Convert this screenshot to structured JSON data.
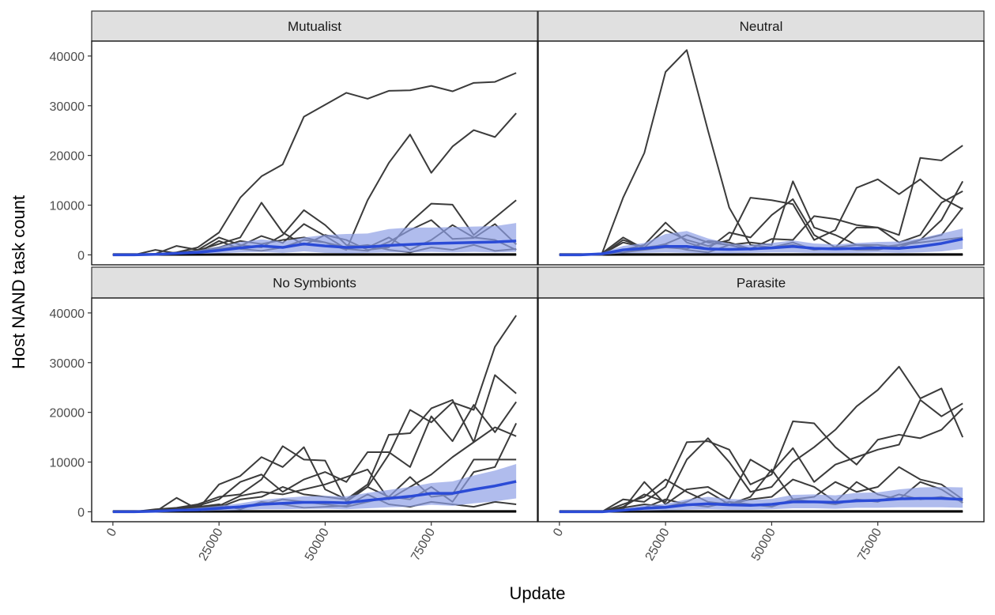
{
  "chart_data": {
    "type": "line",
    "xlabel": "Update",
    "ylabel": "Host NAND task count",
    "xlim": [
      -5000,
      100000
    ],
    "ylim": [
      -2000,
      43000
    ],
    "x_ticks": [
      0,
      25000,
      50000,
      75000
    ],
    "y_ticks": [
      0,
      10000,
      20000,
      30000,
      40000
    ],
    "x_tick_rotation_deg": -60,
    "colors": {
      "run_line": "#3b3b3b",
      "mean_line": "#2b4bd6",
      "ribbon": "#8e9fe6",
      "strip_fill": "#e0e0e0",
      "strip_border": "#333333"
    },
    "x": [
      0,
      5000,
      10000,
      15000,
      20000,
      25000,
      30000,
      35000,
      40000,
      45000,
      50000,
      55000,
      60000,
      65000,
      70000,
      75000,
      80000,
      85000,
      90000,
      95000
    ],
    "facets": [
      {
        "label": "Mutualist",
        "runs": [
          [
            0,
            0,
            0,
            500,
            1500,
            4500,
            11500,
            15800,
            18200,
            27800,
            30200,
            32600,
            31400,
            33000,
            33100,
            34000,
            32900,
            34600,
            34800,
            36600
          ],
          [
            0,
            0,
            0,
            300,
            800,
            1500,
            2800,
            2200,
            3000,
            3500,
            2500,
            1000,
            11000,
            18500,
            24200,
            16500,
            21800,
            25100,
            23700,
            28500
          ],
          [
            0,
            0,
            0,
            400,
            900,
            2200,
            3500,
            10500,
            4500,
            2000,
            4000,
            3000,
            1000,
            1500,
            6500,
            10300,
            10100,
            4000,
            7500,
            11000
          ],
          [
            0,
            0,
            200,
            1800,
            1000,
            3500,
            2000,
            1500,
            4000,
            9000,
            6000,
            2000,
            1500,
            3500,
            1000,
            3000,
            6000,
            3500,
            3000,
            1000
          ],
          [
            0,
            0,
            0,
            200,
            600,
            1200,
            1800,
            3800,
            2400,
            6200,
            3800,
            1200,
            800,
            2600,
            5000,
            7000,
            3200,
            3400,
            6200,
            2100
          ],
          [
            0,
            0,
            1000,
            300,
            500,
            2800,
            1200,
            800,
            1500,
            3000,
            2500,
            1500,
            2000,
            1000,
            500,
            1500,
            1000,
            2000,
            800,
            1200
          ]
        ],
        "mean": [
          0,
          0,
          100,
          300,
          500,
          900,
          1400,
          1800,
          1500,
          2200,
          1800,
          1500,
          1600,
          1900,
          2100,
          2300,
          2400,
          2500,
          2600,
          2800
        ],
        "ribbon_low": [
          0,
          0,
          0,
          100,
          200,
          300,
          500,
          600,
          400,
          700,
          400,
          300,
          400,
          500,
          500,
          600,
          500,
          600,
          500,
          600
        ],
        "ribbon_high": [
          0,
          0,
          200,
          500,
          900,
          1700,
          2600,
          3100,
          2700,
          3500,
          4000,
          4200,
          4300,
          5200,
          5500,
          5500,
          5600,
          5700,
          5800,
          6400
        ]
      },
      {
        "label": "Neutral",
        "runs": [
          [
            0,
            0,
            200,
            11500,
            20500,
            36800,
            41200,
            25000,
            9500,
            2000,
            1500,
            2000,
            1000,
            1500,
            2000,
            1500,
            2000,
            2500,
            3000,
            3500
          ],
          [
            0,
            0,
            100,
            2500,
            1500,
            5000,
            3000,
            1800,
            3000,
            11500,
            11000,
            10200,
            3000,
            5000,
            13500,
            15200,
            12200,
            15200,
            11500,
            9200
          ],
          [
            0,
            0,
            0,
            1000,
            2000,
            6500,
            2500,
            1200,
            4500,
            3500,
            8000,
            11200,
            4000,
            1500,
            5500,
            5500,
            4000,
            19500,
            19000,
            22000
          ],
          [
            0,
            0,
            300,
            3500,
            1200,
            2200,
            4000,
            2500,
            2000,
            2500,
            2000,
            14800,
            5500,
            4000,
            2000,
            2000,
            1500,
            3000,
            7000,
            14800
          ],
          [
            0,
            0,
            100,
            500,
            1000,
            1500,
            1200,
            2800,
            2500,
            1200,
            3200,
            3000,
            7800,
            7200,
            6000,
            5500,
            2500,
            4000,
            10500,
            12800
          ],
          [
            0,
            0,
            0,
            3000,
            1500,
            2000,
            1000,
            500,
            2000,
            1000,
            1500,
            2500,
            1000,
            1500,
            1000,
            1000,
            2000,
            3000,
            4000,
            9500
          ]
        ],
        "mean": [
          0,
          0,
          200,
          1000,
          1300,
          1700,
          1700,
          1200,
          1100,
          1200,
          1400,
          1700,
          1300,
          1200,
          1300,
          1400,
          1300,
          1700,
          2300,
          3200
        ],
        "ribbon_low": [
          0,
          0,
          0,
          300,
          400,
          500,
          400,
          300,
          300,
          400,
          500,
          500,
          400,
          400,
          400,
          500,
          400,
          500,
          700,
          1200
        ],
        "ribbon_high": [
          0,
          0,
          400,
          1800,
          2400,
          4200,
          4800,
          3300,
          2300,
          2000,
          2400,
          2900,
          2300,
          2100,
          2400,
          2600,
          2700,
          3300,
          4300,
          5300
        ]
      },
      {
        "label": "No Symbionts",
        "runs": [
          [
            0,
            0,
            500,
            800,
            1500,
            3000,
            3500,
            6500,
            13200,
            10500,
            10300,
            2000,
            5000,
            11500,
            20500,
            18000,
            22000,
            20500,
            33200,
            39500
          ],
          [
            0,
            0,
            0,
            2800,
            500,
            5500,
            7200,
            11000,
            9000,
            13000,
            4500,
            2500,
            5500,
            15500,
            15800,
            20800,
            22500,
            14000,
            27500,
            23800
          ],
          [
            0,
            0,
            200,
            600,
            1200,
            2500,
            6000,
            7500,
            4000,
            6500,
            8000,
            6000,
            12000,
            12000,
            9000,
            19200,
            14200,
            21500,
            16000,
            22100
          ],
          [
            0,
            0,
            0,
            400,
            800,
            1200,
            3200,
            4000,
            3500,
            4500,
            5500,
            7000,
            8500,
            2500,
            5000,
            7500,
            11000,
            14000,
            17000,
            15200
          ],
          [
            0,
            0,
            100,
            300,
            600,
            900,
            2500,
            3000,
            5000,
            3500,
            3000,
            2500,
            5000,
            3000,
            7000,
            3000,
            3500,
            10500,
            10500,
            10500
          ],
          [
            0,
            0,
            0,
            200,
            300,
            500,
            1000,
            1500,
            2500,
            2000,
            1500,
            1000,
            2000,
            3000,
            2500,
            5000,
            2000,
            8000,
            9000,
            17800
          ],
          [
            0,
            0,
            0,
            500,
            1000,
            1500,
            500,
            2000,
            1500,
            800,
            1000,
            1200,
            3500,
            1500,
            1000,
            2000,
            1500,
            1000,
            2000,
            1500
          ]
        ],
        "mean": [
          0,
          0,
          100,
          300,
          400,
          700,
          1000,
          1500,
          1700,
          1900,
          1900,
          1800,
          2300,
          2700,
          3100,
          3700,
          3700,
          4500,
          5200,
          6100
        ],
        "ribbon_low": [
          0,
          0,
          0,
          100,
          100,
          200,
          300,
          500,
          500,
          600,
          600,
          500,
          700,
          900,
          1000,
          1400,
          1200,
          1700,
          2100,
          2700
        ],
        "ribbon_high": [
          0,
          0,
          200,
          500,
          800,
          1200,
          1700,
          2400,
          2800,
          3100,
          3200,
          3100,
          3800,
          4400,
          5000,
          5800,
          6100,
          7300,
          8300,
          9600
        ]
      },
      {
        "label": "Parasite",
        "runs": [
          [
            0,
            0,
            0,
            1000,
            3500,
            2000,
            10500,
            14800,
            10000,
            4000,
            5000,
            10000,
            13000,
            16500,
            21200,
            24500,
            29200,
            22800,
            24800,
            15000
          ],
          [
            0,
            0,
            0,
            2500,
            2000,
            5000,
            14000,
            14200,
            12500,
            5500,
            7500,
            18200,
            17800,
            13000,
            9500,
            14500,
            15500,
            14800,
            16500,
            20800
          ],
          [
            0,
            0,
            0,
            500,
            6000,
            1500,
            4500,
            5000,
            2500,
            10500,
            8000,
            12800,
            6000,
            9500,
            11000,
            12500,
            13500,
            22500,
            19200,
            21800
          ],
          [
            0,
            0,
            0,
            1500,
            3000,
            6500,
            4000,
            2000,
            1500,
            3000,
            8500,
            2500,
            3000,
            6000,
            4000,
            5000,
            9000,
            6500,
            5500,
            2500
          ],
          [
            0,
            0,
            0,
            800,
            1500,
            1000,
            2000,
            4000,
            1500,
            2500,
            3000,
            6500,
            5000,
            2000,
            6000,
            3500,
            2500,
            6000,
            4500,
            1800
          ],
          [
            0,
            0,
            0,
            300,
            800,
            2500,
            1500,
            1000,
            2000,
            1500,
            1000,
            2500,
            2000,
            1500,
            2500,
            2000,
            3500,
            2500,
            3000,
            2200
          ]
        ],
        "mean": [
          0,
          0,
          0,
          300,
          700,
          900,
          1400,
          1600,
          1400,
          1300,
          1500,
          2000,
          2000,
          1900,
          2200,
          2300,
          2600,
          2700,
          2700,
          2500
        ],
        "ribbon_low": [
          0,
          0,
          0,
          100,
          200,
          300,
          400,
          500,
          400,
          400,
          500,
          700,
          700,
          600,
          800,
          800,
          900,
          900,
          900,
          800
        ],
        "ribbon_high": [
          0,
          0,
          0,
          600,
          1300,
          1600,
          2500,
          3000,
          2600,
          2400,
          2600,
          3400,
          3500,
          3300,
          3800,
          3900,
          4500,
          4900,
          5000,
          4900
        ]
      }
    ]
  }
}
